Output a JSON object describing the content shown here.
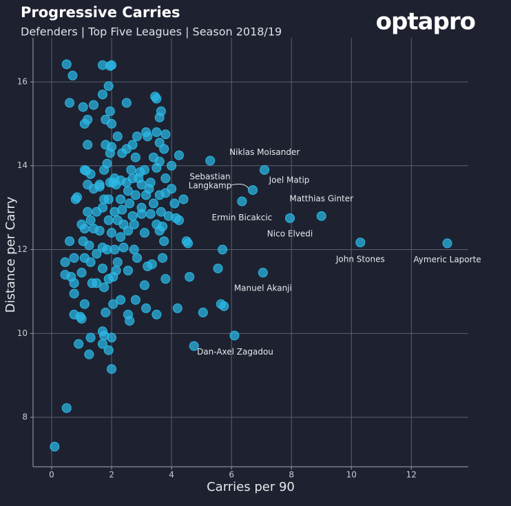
{
  "chart_data": {
    "type": "scatter",
    "title": "Progressive Carries",
    "subtitle": "Defenders | Top Five Leagues | Season 2018/19",
    "brand": "optapro",
    "xlabel": "Carries per 90",
    "ylabel": "Distance per Carry",
    "color": "#2bb8e6",
    "grid": true,
    "xlim": [
      -0.62,
      13.9
    ],
    "ylim": [
      6.82,
      17.05
    ],
    "xticks": [
      0,
      2,
      4,
      6,
      8,
      10,
      12
    ],
    "yticks": [
      8,
      10,
      12,
      14,
      16
    ],
    "x": [
      0.1,
      0.5,
      0.5,
      0.7,
      0.6,
      1.7,
      2.0,
      1.95,
      1.9,
      1.05,
      1.4,
      1.7,
      2.5,
      3.5,
      3.45,
      3.65,
      3.6,
      1.95,
      1.8,
      2.0,
      1.1,
      1.2,
      2.85,
      3.15,
      3.2,
      3.5,
      3.8,
      2.2,
      2.7,
      2.5,
      1.2,
      1.8,
      2.0,
      3.6,
      3.75,
      4.25,
      1.95,
      2.35,
      2.8,
      3.4,
      3.6,
      1.85,
      4.0,
      1.1,
      1.15,
      1.75,
      2.65,
      2.95,
      3.1,
      3.5,
      1.3,
      2.1,
      2.3,
      2.7,
      2.9,
      3.3,
      3.8,
      1.6,
      1.95,
      2.05,
      2.15,
      2.5,
      3.0,
      3.25,
      1.2,
      1.4,
      0.8,
      0.85,
      1.6,
      2.55,
      2.8,
      3.15,
      3.6,
      4.0,
      4.1,
      4.4,
      3.8,
      1.75,
      1.9,
      2.3,
      2.6,
      3.0,
      3.4,
      1.5,
      1.7,
      1.2,
      2.1,
      2.35,
      2.7,
      3.0,
      3.3,
      3.65,
      4.15,
      4.25,
      3.9,
      1.0,
      1.1,
      1.4,
      1.3,
      1.9,
      2.2,
      2.4,
      2.75,
      3.5,
      3.7,
      1.6,
      2.0,
      2.3,
      2.55,
      3.1,
      3.6,
      3.75,
      0.6,
      1.05,
      1.25,
      1.7,
      1.85,
      2.1,
      2.4,
      2.75,
      4.5,
      4.55,
      5.7,
      0.45,
      0.75,
      1.1,
      1.3,
      1.5,
      2.2,
      2.85,
      3.7,
      3.2,
      3.35,
      1.7,
      2.15,
      2.55,
      5.55,
      0.45,
      0.65,
      1.0,
      1.9,
      2.05,
      3.8,
      4.6,
      0.75,
      1.35,
      1.5,
      1.75,
      3.1,
      0.75,
      1.1,
      2.3,
      2.05,
      2.8,
      3.15,
      4.2,
      5.65,
      5.75,
      2.55,
      2.6,
      3.5,
      0.75,
      0.95,
      1.0,
      1.8,
      5.05,
      1.7,
      1.75,
      1.3,
      2.0,
      0.9,
      1.7,
      1.9,
      4.75,
      1.25,
      2.0
    ],
    "y": [
      7.3,
      8.22,
      16.42,
      16.15,
      15.5,
      16.4,
      16.4,
      16.38,
      15.9,
      15.4,
      15.45,
      15.7,
      15.5,
      15.6,
      15.65,
      15.3,
      15.15,
      15.3,
      15.1,
      15.0,
      15.0,
      15.1,
      14.7,
      14.8,
      14.7,
      14.8,
      14.75,
      14.7,
      14.5,
      14.4,
      14.5,
      14.5,
      14.45,
      14.55,
      14.4,
      14.25,
      14.3,
      14.3,
      14.2,
      14.2,
      14.1,
      14.05,
      14.0,
      13.9,
      13.88,
      13.9,
      13.9,
      13.85,
      13.9,
      13.95,
      13.8,
      13.7,
      13.65,
      13.7,
      13.7,
      13.6,
      13.7,
      13.55,
      13.6,
      13.6,
      13.55,
      13.6,
      13.55,
      13.45,
      13.55,
      13.45,
      13.2,
      13.25,
      13.5,
      13.4,
      13.3,
      13.3,
      13.3,
      13.45,
      13.1,
      13.2,
      13.35,
      13.2,
      13.2,
      13.2,
      13.1,
      13.0,
      13.1,
      12.9,
      13.0,
      12.9,
      12.9,
      12.95,
      12.8,
      12.85,
      12.85,
      12.9,
      12.75,
      12.7,
      12.8,
      12.6,
      12.5,
      12.5,
      12.7,
      12.7,
      12.7,
      12.6,
      12.6,
      12.6,
      12.55,
      12.45,
      12.4,
      12.3,
      12.45,
      12.4,
      12.45,
      12.2,
      12.2,
      12.2,
      12.1,
      12.05,
      12.0,
      12.0,
      12.05,
      12.0,
      12.2,
      12.15,
      12.0,
      11.7,
      11.8,
      11.8,
      11.7,
      11.9,
      11.7,
      11.8,
      11.8,
      11.6,
      11.65,
      11.55,
      11.5,
      11.5,
      11.55,
      11.4,
      11.35,
      11.45,
      11.3,
      11.35,
      11.3,
      11.35,
      11.2,
      11.2,
      11.2,
      11.1,
      11.15,
      10.95,
      10.7,
      10.8,
      10.7,
      10.8,
      10.6,
      10.6,
      10.7,
      10.65,
      10.45,
      10.3,
      10.45,
      10.45,
      10.4,
      10.35,
      10.5,
      10.5,
      10.05,
      9.95,
      9.9,
      9.9,
      9.75,
      9.75,
      9.6,
      9.7,
      9.5,
      9.15
    ],
    "annotations": [
      {
        "lines": [
          "Aymeric Laporte"
        ],
        "x": 13.2,
        "y": 12.15
      },
      {
        "lines": [
          "John Stones"
        ],
        "x": 10.3,
        "y": 12.17
      },
      {
        "lines": [
          "Matthias Ginter"
        ],
        "x": 9.0,
        "y": 12.8
      },
      {
        "lines": [
          "Nico Elvedi"
        ],
        "x": 7.95,
        "y": 12.75
      },
      {
        "lines": [
          "Ermin Bicakcic"
        ],
        "x": 6.35,
        "y": 13.15
      },
      {
        "lines": [
          "Joel Matip"
        ],
        "x": 7.1,
        "y": 13.9
      },
      {
        "lines": [
          "Niklas Moisander"
        ],
        "x": 5.29,
        "y": 14.12
      },
      {
        "lines": [
          "Sebastian",
          "Langkamp"
        ],
        "x": 6.71,
        "y": 13.42
      },
      {
        "lines": [
          "Manuel Akanji"
        ],
        "x": 7.05,
        "y": 11.45
      },
      {
        "lines": [
          "Dan-Axel Zagadou"
        ],
        "x": 6.1,
        "y": 9.95
      }
    ]
  }
}
